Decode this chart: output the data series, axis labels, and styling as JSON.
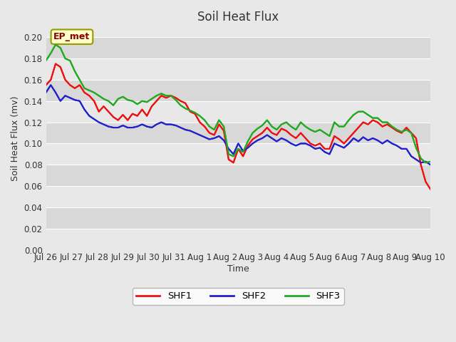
{
  "title": "Soil Heat Flux",
  "ylabel": "Soil Heat Flux (mv)",
  "xlabel": "Time",
  "annotation": "EP_met",
  "ylim": [
    0.0,
    0.21
  ],
  "yticks": [
    0.0,
    0.02,
    0.04,
    0.06,
    0.08,
    0.1,
    0.12,
    0.14,
    0.16,
    0.18,
    0.2
  ],
  "xtick_labels": [
    "Jul 26",
    "Jul 27",
    "Jul 28",
    "Jul 29",
    "Jul 30",
    "Jul 31",
    "Aug 1",
    "Aug 2",
    "Aug 3",
    "Aug 4",
    "Aug 5",
    "Aug 6",
    "Aug 7",
    "Aug 8",
    "Aug 9",
    "Aug 10"
  ],
  "bg_color": "#e8e8e8",
  "bg_color2": "#d8d8d8",
  "grid_color": "#ffffff",
  "fig_bg": "#e8e8e8",
  "legend_entries": [
    "SHF1",
    "SHF2",
    "SHF3"
  ],
  "line_colors": [
    "#ee1111",
    "#2222cc",
    "#22aa22"
  ],
  "SHF1": [
    0.155,
    0.16,
    0.175,
    0.172,
    0.16,
    0.155,
    0.152,
    0.155,
    0.148,
    0.145,
    0.14,
    0.13,
    0.135,
    0.13,
    0.125,
    0.122,
    0.127,
    0.122,
    0.128,
    0.126,
    0.132,
    0.126,
    0.135,
    0.14,
    0.145,
    0.143,
    0.145,
    0.143,
    0.14,
    0.138,
    0.13,
    0.128,
    0.12,
    0.116,
    0.11,
    0.108,
    0.118,
    0.112,
    0.085,
    0.082,
    0.095,
    0.088,
    0.098,
    0.104,
    0.107,
    0.11,
    0.115,
    0.11,
    0.108,
    0.114,
    0.112,
    0.108,
    0.105,
    0.11,
    0.105,
    0.1,
    0.098,
    0.1,
    0.095,
    0.095,
    0.107,
    0.104,
    0.1,
    0.105,
    0.11,
    0.115,
    0.12,
    0.118,
    0.122,
    0.12,
    0.116,
    0.118,
    0.115,
    0.112,
    0.11,
    0.115,
    0.11,
    0.105,
    0.08,
    0.064,
    0.057
  ],
  "SHF2": [
    0.148,
    0.155,
    0.148,
    0.14,
    0.145,
    0.143,
    0.141,
    0.14,
    0.132,
    0.126,
    0.123,
    0.12,
    0.118,
    0.116,
    0.115,
    0.115,
    0.117,
    0.115,
    0.115,
    0.116,
    0.118,
    0.116,
    0.115,
    0.118,
    0.12,
    0.118,
    0.118,
    0.117,
    0.115,
    0.113,
    0.112,
    0.11,
    0.108,
    0.106,
    0.104,
    0.105,
    0.107,
    0.103,
    0.095,
    0.09,
    0.1,
    0.093,
    0.096,
    0.1,
    0.103,
    0.105,
    0.108,
    0.105,
    0.102,
    0.105,
    0.103,
    0.1,
    0.098,
    0.1,
    0.1,
    0.098,
    0.095,
    0.096,
    0.092,
    0.09,
    0.1,
    0.098,
    0.096,
    0.1,
    0.105,
    0.102,
    0.106,
    0.103,
    0.105,
    0.103,
    0.1,
    0.103,
    0.1,
    0.098,
    0.095,
    0.095,
    0.088,
    0.085,
    0.082,
    0.083,
    0.08
  ],
  "SHF3": [
    0.178,
    0.185,
    0.193,
    0.19,
    0.18,
    0.178,
    0.168,
    0.16,
    0.152,
    0.15,
    0.148,
    0.145,
    0.142,
    0.14,
    0.136,
    0.142,
    0.144,
    0.141,
    0.14,
    0.137,
    0.14,
    0.139,
    0.142,
    0.145,
    0.147,
    0.145,
    0.145,
    0.141,
    0.136,
    0.133,
    0.131,
    0.129,
    0.126,
    0.122,
    0.116,
    0.113,
    0.122,
    0.116,
    0.09,
    0.088,
    0.095,
    0.092,
    0.102,
    0.11,
    0.114,
    0.117,
    0.122,
    0.116,
    0.113,
    0.118,
    0.12,
    0.116,
    0.113,
    0.12,
    0.116,
    0.113,
    0.111,
    0.113,
    0.11,
    0.107,
    0.12,
    0.116,
    0.116,
    0.122,
    0.127,
    0.13,
    0.13,
    0.127,
    0.124,
    0.124,
    0.12,
    0.12,
    0.116,
    0.113,
    0.111,
    0.113,
    0.11,
    0.096,
    0.086,
    0.082,
    0.083
  ]
}
